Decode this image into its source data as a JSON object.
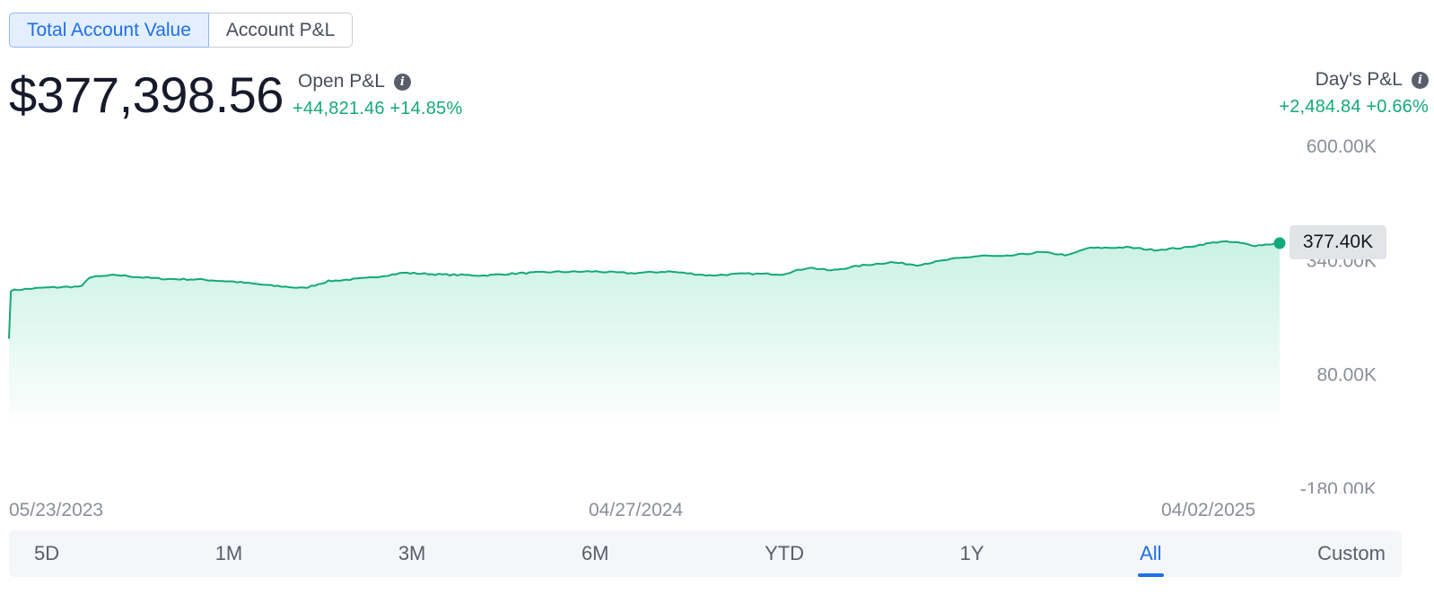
{
  "tabs": [
    {
      "label": "Total Account Value",
      "active": true
    },
    {
      "label": "Account P&L",
      "active": false
    }
  ],
  "summary": {
    "total_value": "$377,398.56",
    "open_pl": {
      "label": "Open P&L",
      "value": "+44,821.46 +14.85%"
    },
    "days_pl": {
      "label": "Day's P&L",
      "value": "+2,484.84 +0.66%"
    }
  },
  "chart_data": {
    "type": "area",
    "title": "",
    "xlabel": "",
    "ylabel": "",
    "y_ticks": [
      "600.00K",
      "340.00K",
      "80.00K",
      "-180.00K"
    ],
    "y_tick_values": [
      600000,
      340000,
      80000,
      -180000
    ],
    "ylim": [
      -180000,
      600000
    ],
    "x_labels": [
      "05/23/2023",
      "04/27/2024",
      "04/02/2025"
    ],
    "grid": false,
    "color": "#13a87a",
    "current_value_label": "377.40K",
    "series": [
      {
        "x": [
          "2023-05-23",
          "2023-05-24",
          "2023-06-10",
          "2023-07-01",
          "2023-07-05",
          "2023-07-20",
          "2023-08-01",
          "2023-08-15",
          "2023-09-01",
          "2023-09-20",
          "2023-10-10",
          "2023-10-28",
          "2023-11-10",
          "2023-12-01",
          "2023-12-20",
          "2024-01-10",
          "2024-02-01",
          "2024-02-20",
          "2024-03-10",
          "2024-04-01",
          "2024-04-20",
          "2024-05-10",
          "2024-06-01",
          "2024-06-20",
          "2024-07-10",
          "2024-07-24",
          "2024-08-05",
          "2024-08-20",
          "2024-09-06",
          "2024-09-20",
          "2024-10-10",
          "2024-10-25",
          "2024-11-05",
          "2024-11-25",
          "2024-12-10",
          "2024-12-20",
          "2025-01-10",
          "2025-01-25",
          "2025-02-10",
          "2025-02-20",
          "2025-03-01",
          "2025-03-10",
          "2025-03-20",
          "2025-04-02"
        ],
        "y": [
          160000,
          270000,
          276000,
          279000,
          300000,
          305000,
          300000,
          296000,
          295000,
          290000,
          281000,
          275000,
          291000,
          298000,
          310000,
          306000,
          304000,
          309000,
          312000,
          313000,
          309000,
          313000,
          304000,
          308000,
          307000,
          322000,
          315000,
          326000,
          334000,
          328000,
          342000,
          349000,
          347000,
          357000,
          350000,
          366000,
          368000,
          362000,
          367000,
          375000,
          381000,
          379000,
          372000,
          377400
        ]
      }
    ]
  },
  "range": {
    "items": [
      "5D",
      "1M",
      "3M",
      "6M",
      "YTD",
      "1Y",
      "All",
      "Custom"
    ],
    "active": "All"
  }
}
